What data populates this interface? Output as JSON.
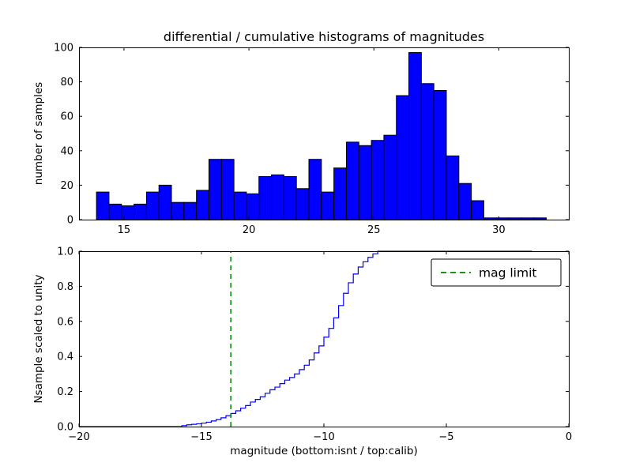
{
  "figure": {
    "title": "differential / cumulative histograms of magnitudes",
    "background_color": "#ffffff",
    "axis_color": "#000000"
  },
  "chart_data": [
    {
      "type": "bar",
      "name": "differential-histogram",
      "ylabel": "number of samples",
      "bin_start": 13.9,
      "bin_width": 0.5,
      "values": [
        16,
        9,
        8,
        9,
        16,
        20,
        10,
        10,
        17,
        35,
        35,
        16,
        15,
        25,
        26,
        25,
        18,
        35,
        16,
        30,
        45,
        43,
        46,
        49,
        72,
        97,
        79,
        75,
        37,
        21,
        11,
        1,
        1,
        1,
        1,
        1
      ],
      "xlim": [
        13.2,
        32.8
      ],
      "ylim": [
        0,
        100
      ],
      "xticks": [
        15,
        20,
        25,
        30
      ],
      "xtick_labels": [
        "15",
        "20",
        "25",
        "30"
      ],
      "yticks": [
        0,
        20,
        40,
        60,
        80,
        100
      ],
      "ytick_labels": [
        "0",
        "20",
        "40",
        "60",
        "80",
        "100"
      ],
      "bar_color": "#0000ff",
      "bar_edge_color": "#000000",
      "grid": false
    },
    {
      "type": "line",
      "name": "cumulative-histogram",
      "ylabel": "Nsample scaled to unity",
      "xlabel": "magnitude (bottom:isnt / top:calib)",
      "xlim": [
        -20,
        0
      ],
      "ylim": [
        0.0,
        1.0
      ],
      "xticks": [
        -20,
        -15,
        -10,
        -5,
        0
      ],
      "xtick_labels": [
        "−20",
        "−15",
        "−10",
        "−5",
        "0"
      ],
      "yticks": [
        0.0,
        0.2,
        0.4,
        0.6,
        0.8,
        1.0
      ],
      "ytick_labels": [
        "0.0",
        "0.2",
        "0.4",
        "0.6",
        "0.8",
        "1.0"
      ],
      "line_color": "#0000ff",
      "step_points": [
        [
          -15.8,
          0.005
        ],
        [
          -15.6,
          0.01
        ],
        [
          -15.4,
          0.013
        ],
        [
          -15.2,
          0.016
        ],
        [
          -15.0,
          0.02
        ],
        [
          -14.8,
          0.025
        ],
        [
          -14.6,
          0.032
        ],
        [
          -14.4,
          0.04
        ],
        [
          -14.2,
          0.05
        ],
        [
          -14.0,
          0.062
        ],
        [
          -13.8,
          0.075
        ],
        [
          -13.6,
          0.09
        ],
        [
          -13.4,
          0.105
        ],
        [
          -13.2,
          0.12
        ],
        [
          -13.0,
          0.14
        ],
        [
          -12.8,
          0.155
        ],
        [
          -12.6,
          0.17
        ],
        [
          -12.4,
          0.19
        ],
        [
          -12.2,
          0.21
        ],
        [
          -12.0,
          0.225
        ],
        [
          -11.8,
          0.245
        ],
        [
          -11.6,
          0.265
        ],
        [
          -11.4,
          0.28
        ],
        [
          -11.2,
          0.3
        ],
        [
          -11.0,
          0.325
        ],
        [
          -10.8,
          0.35
        ],
        [
          -10.6,
          0.38
        ],
        [
          -10.4,
          0.42
        ],
        [
          -10.2,
          0.46
        ],
        [
          -10.0,
          0.51
        ],
        [
          -9.8,
          0.56
        ],
        [
          -9.6,
          0.62
        ],
        [
          -9.4,
          0.69
        ],
        [
          -9.2,
          0.76
        ],
        [
          -9.0,
          0.82
        ],
        [
          -8.8,
          0.87
        ],
        [
          -8.6,
          0.91
        ],
        [
          -8.4,
          0.94
        ],
        [
          -8.2,
          0.965
        ],
        [
          -8.0,
          0.985
        ],
        [
          -7.8,
          1.0
        ],
        [
          -1.5,
          1.0
        ]
      ],
      "vline": {
        "x": -13.8,
        "color": "#008000",
        "style": "dashed",
        "label": "mag limit"
      },
      "legend": {
        "position": "upper right",
        "entries": [
          {
            "label": "mag limit",
            "color": "#008000",
            "dashed": true
          }
        ]
      },
      "grid": false
    }
  ]
}
